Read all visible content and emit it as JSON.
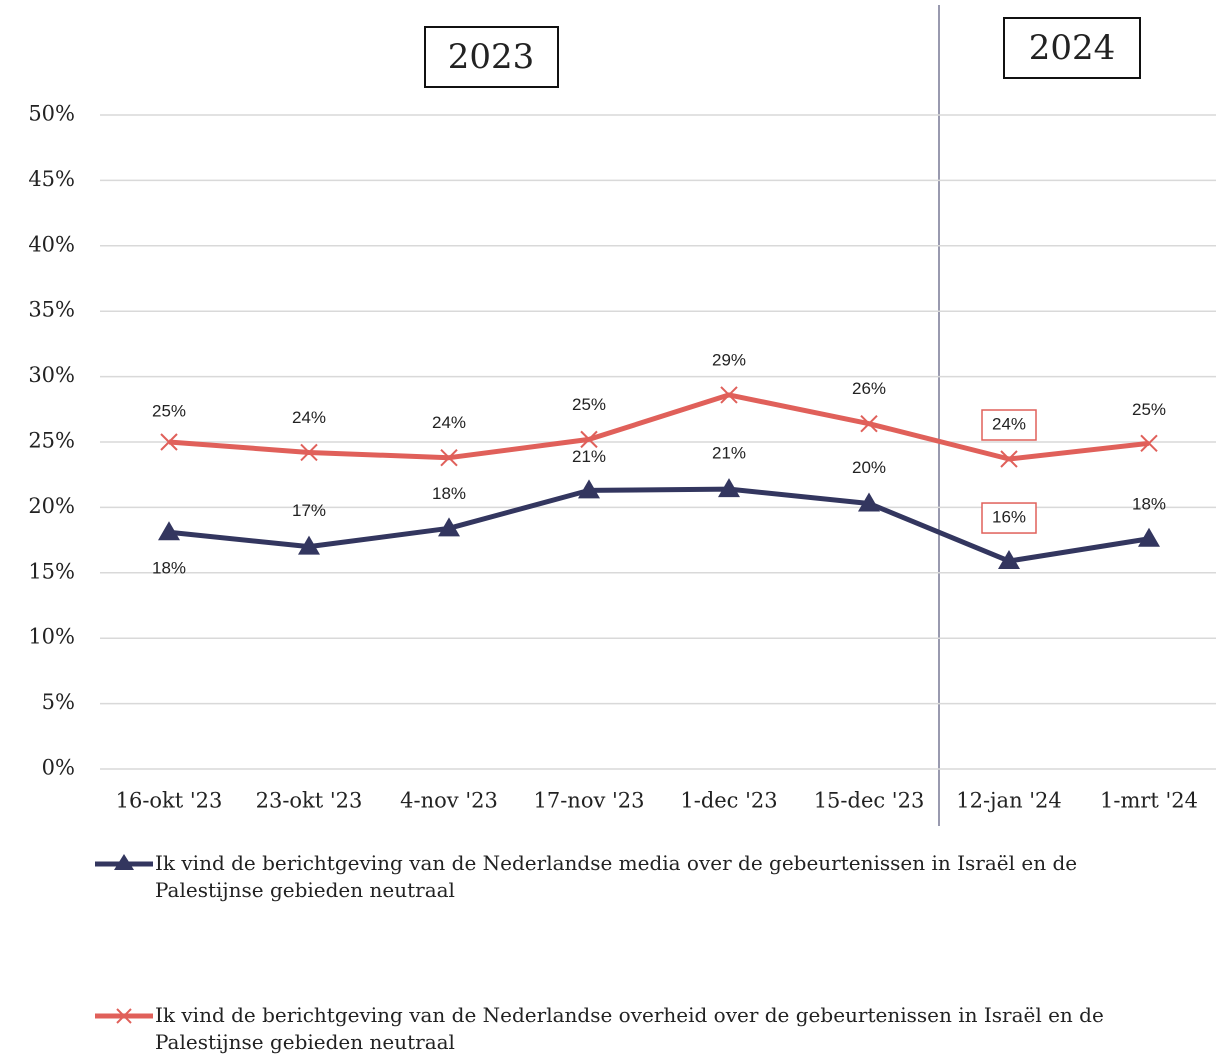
{
  "chart_data": {
    "type": "line",
    "annotations": [
      "2023",
      "2024"
    ],
    "categories": [
      "16-okt '23",
      "23-okt '23",
      "4-nov '23",
      "17-nov '23",
      "1-dec '23",
      "15-dec '23",
      "12-jan '24",
      "1-mrt '24"
    ],
    "series": [
      {
        "name": "Ik vind de berichtgeving van de Nederlandse media over de gebeurtenissen in Israël en de Palestijnse gebieden neutraal",
        "color": "#33365f",
        "marker": "triangle",
        "values": [
          18.1,
          17.0,
          18.4,
          21.3,
          21.4,
          20.3,
          15.9,
          17.6
        ],
        "value_labels": [
          "18%",
          "17%",
          "18%",
          "21%",
          "21%",
          "20%",
          "16%",
          "18%"
        ]
      },
      {
        "name": "Ik vind de berichtgeving van de Nederlandse overheid over de gebeurtenissen in Israël en de Palestijnse gebieden neutraal",
        "color": "#e0605a",
        "marker": "x",
        "values": [
          25.0,
          24.2,
          23.8,
          25.2,
          28.6,
          26.4,
          23.7,
          24.9
        ],
        "value_labels": [
          "25%",
          "24%",
          "24%",
          "25%",
          "29%",
          "26%",
          "24%",
          "25%"
        ]
      }
    ],
    "ylim": [
      0,
      50
    ],
    "yticks": [
      {
        "value": 0,
        "label": "0%"
      },
      {
        "value": 5,
        "label": "5%"
      },
      {
        "value": 10,
        "label": "10%"
      },
      {
        "value": 15,
        "label": "15%"
      },
      {
        "value": 20,
        "label": "20%"
      },
      {
        "value": 25,
        "label": "25%"
      },
      {
        "value": 30,
        "label": "30%"
      },
      {
        "value": 35,
        "label": "35%"
      },
      {
        "value": 40,
        "label": "40%"
      },
      {
        "value": 45,
        "label": "45%"
      },
      {
        "value": 50,
        "label": "50%"
      }
    ],
    "grid": true
  }
}
